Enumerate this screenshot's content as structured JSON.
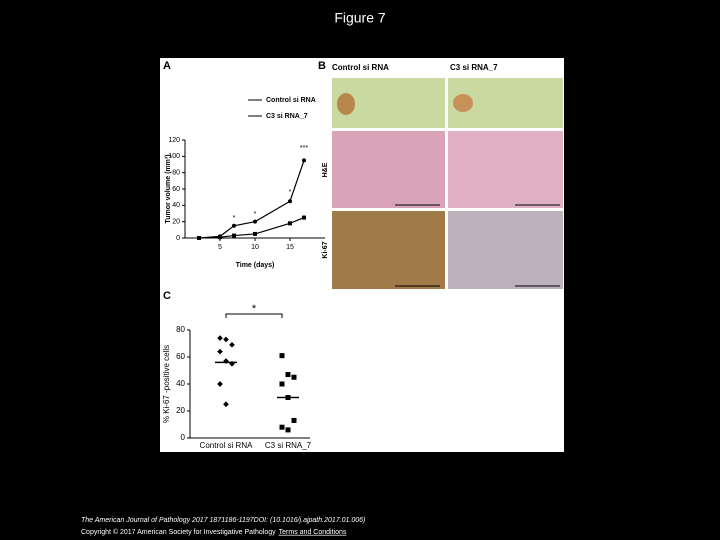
{
  "title": "Figure 7",
  "panel_a": {
    "label": "A",
    "type": "line",
    "y_label": "Tumor volume (mm³)",
    "x_label": "Time (days)",
    "xlim": [
      0,
      20
    ],
    "xticks": [
      5,
      10,
      15
    ],
    "ylim": [
      0,
      120
    ],
    "yticks": [
      0,
      20,
      40,
      60,
      80,
      100,
      120
    ],
    "series": [
      {
        "name": "Control si RNA",
        "color": "#000000",
        "x": [
          2,
          5,
          7,
          10,
          15,
          17
        ],
        "values": [
          0,
          2,
          15,
          20,
          45,
          95
        ]
      },
      {
        "name": "C3 si RNA_7",
        "color": "#000000",
        "x": [
          2,
          5,
          7,
          10,
          15,
          17
        ],
        "values": [
          0,
          1,
          3,
          5,
          18,
          25
        ]
      }
    ],
    "annotations": [
      {
        "text": "*",
        "x": 7,
        "y": 24
      },
      {
        "text": "*",
        "x": 10,
        "y": 29
      },
      {
        "text": "*",
        "x": 15,
        "y": 56
      },
      {
        "text": "***",
        "x": 17,
        "y": 110
      }
    ]
  },
  "panel_b": {
    "label": "B",
    "columns": [
      "Control si RNA",
      "C3 si RNA_7"
    ],
    "rows": [
      "H&E",
      "Ki-67"
    ]
  },
  "panel_c": {
    "label": "C",
    "type": "scatter",
    "y_label": "% Ki-67 -positive cells",
    "categories": [
      "Control si RNA",
      "C3 si RNA_7"
    ],
    "ylim": [
      0,
      80
    ],
    "yticks": [
      0,
      20,
      40,
      60,
      80
    ],
    "groups": [
      {
        "values": [
          74,
          73,
          69,
          64,
          57,
          55,
          40,
          25
        ],
        "mean": 56
      },
      {
        "values": [
          61,
          47,
          45,
          40,
          30,
          13,
          8,
          6
        ],
        "mean": 30
      }
    ],
    "significance": "*"
  },
  "footer": {
    "citation": "The American Journal of Pathology 2017 1871186-1197DOI: (10.1016/j.ajpath.2017.01.006)",
    "copyright": "Copyright © 2017 American Society for Investigative Pathology",
    "link": "Terms and Conditions"
  }
}
